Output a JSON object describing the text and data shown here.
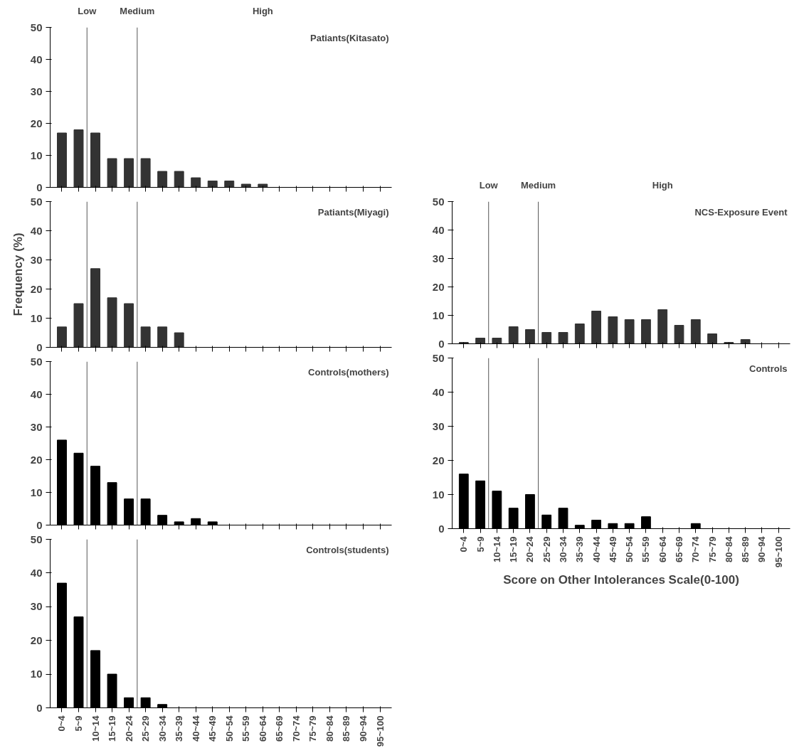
{
  "chart_data": [
    {
      "type": "bar",
      "title": "Patiants(Kitasato)",
      "categories": [
        null,
        null,
        null,
        null,
        null,
        null,
        null,
        null,
        null,
        null,
        null,
        null,
        null,
        null,
        null,
        null,
        null,
        null,
        null,
        null
      ],
      "values": [
        17,
        18,
        17,
        9,
        9,
        9,
        5,
        5,
        3,
        2,
        2,
        1,
        1,
        0,
        0,
        0,
        0,
        0,
        0,
        0
      ],
      "color": "#333333",
      "ylim": [
        0,
        50
      ],
      "yticks": [
        0,
        10,
        20,
        30,
        40,
        50
      ],
      "tick_labels": "y",
      "grid": false,
      "legend": false,
      "annotations": [
        "Low",
        "Medium",
        "High"
      ]
    },
    {
      "type": "bar",
      "title": "Patiants(Miyagi)",
      "ylabel": "Frequency (%)",
      "categories": [
        null,
        null,
        null,
        null,
        null,
        null,
        null,
        null,
        null,
        null,
        null,
        null,
        null,
        null,
        null,
        null,
        null,
        null,
        null,
        null
      ],
      "values": [
        7,
        15,
        27,
        17,
        15,
        7,
        7,
        5,
        0,
        0,
        0,
        0,
        0,
        0,
        0,
        0,
        0,
        0,
        0,
        0
      ],
      "color": "#333333",
      "ylim": [
        0,
        50
      ],
      "yticks": [
        0,
        10,
        20,
        30,
        40,
        50
      ],
      "tick_labels": "y",
      "grid": false,
      "legend": false
    },
    {
      "type": "bar",
      "title": "Controls(mothers)",
      "categories": [
        null,
        null,
        null,
        null,
        null,
        null,
        null,
        null,
        null,
        null,
        null,
        null,
        null,
        null,
        null,
        null,
        null,
        null,
        null,
        null
      ],
      "values": [
        26,
        22,
        18,
        13,
        8,
        8,
        3,
        1,
        2,
        1,
        0,
        0,
        0,
        0,
        0,
        0,
        0,
        0,
        0,
        0
      ],
      "color": "#000000",
      "ylim": [
        0,
        50
      ],
      "yticks": [
        0,
        10,
        20,
        30,
        40,
        50
      ],
      "tick_labels": "y",
      "grid": false,
      "legend": false
    },
    {
      "type": "bar",
      "title": "Controls(students)",
      "categories": [
        "0~4",
        "5~9",
        "10~14",
        "15~19",
        "20~24",
        "25~29",
        "30~34",
        "35~39",
        "40~44",
        "45~49",
        "50~54",
        "55~59",
        "60~64",
        "65~69",
        "70~74",
        "75~79",
        "80~84",
        "85~89",
        "90~94",
        "95~100"
      ],
      "values": [
        37,
        27,
        17,
        10,
        3,
        3,
        1,
        0,
        0,
        0,
        0,
        0,
        0,
        0,
        0,
        0,
        0,
        0,
        0,
        0
      ],
      "color": "#000000",
      "ylim": [
        0,
        50
      ],
      "yticks": [
        0,
        10,
        20,
        30,
        40,
        50
      ],
      "grid": false,
      "legend": false
    },
    {
      "type": "bar",
      "title": "NCS-Exposure Event",
      "categories": [
        null,
        null,
        null,
        null,
        null,
        null,
        null,
        null,
        null,
        null,
        null,
        null,
        null,
        null,
        null,
        null,
        null,
        null,
        null,
        null
      ],
      "values": [
        0.5,
        2,
        2,
        6,
        5,
        4,
        4,
        7,
        11.5,
        9.5,
        8.5,
        8.5,
        12,
        6.5,
        8.5,
        3.5,
        0.5,
        1.5,
        0,
        0
      ],
      "color": "#333333",
      "ylim": [
        0,
        50
      ],
      "yticks": [
        0,
        10,
        20,
        30,
        40,
        50
      ],
      "tick_labels": "y",
      "grid": false,
      "legend": false,
      "annotations": [
        "Low",
        "Medium",
        "High"
      ]
    },
    {
      "type": "bar",
      "title": "Controls",
      "xlabel": "Score on Other Intolerances Scale(0-100)",
      "categories": [
        "0~4",
        "5~9",
        "10~14",
        "15~19",
        "20~24",
        "25~29",
        "30~34",
        "35~39",
        "40~44",
        "45~49",
        "50~54",
        "55~59",
        "60~64",
        "65~69",
        "70~74",
        "75~79",
        "80~84",
        "85~89",
        "90~94",
        "95~100"
      ],
      "values": [
        16,
        14,
        11,
        6,
        10,
        4,
        6,
        1,
        2.5,
        1.5,
        1.5,
        3.5,
        0,
        0,
        1.5,
        0,
        0,
        0,
        0,
        0
      ],
      "color": "#000000",
      "ylim": [
        0,
        50
      ],
      "yticks": [
        0,
        10,
        20,
        30,
        40,
        50
      ],
      "grid": false,
      "legend": false
    }
  ]
}
